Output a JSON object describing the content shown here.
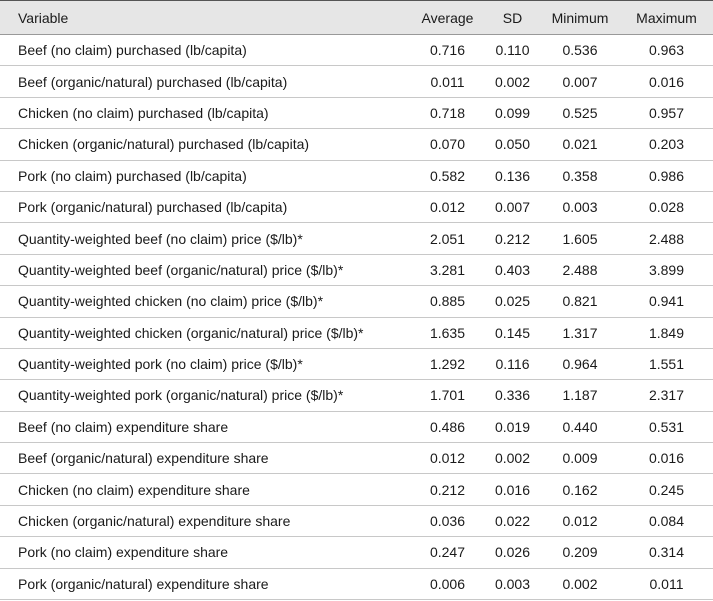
{
  "table": {
    "header": [
      "Variable",
      "Average",
      "SD",
      "Minimum",
      "Maximum"
    ],
    "rows": [
      [
        "Beef (no claim) purchased (lb/capita)",
        "0.716",
        "0.110",
        "0.536",
        "0.963"
      ],
      [
        "Beef (organic/natural) purchased (lb/capita)",
        "0.011",
        "0.002",
        "0.007",
        "0.016"
      ],
      [
        "Chicken (no claim) purchased (lb/capita)",
        "0.718",
        "0.099",
        "0.525",
        "0.957"
      ],
      [
        "Chicken (organic/natural) purchased (lb/capita)",
        "0.070",
        "0.050",
        "0.021",
        "0.203"
      ],
      [
        "Pork (no claim) purchased (lb/capita)",
        "0.582",
        "0.136",
        "0.358",
        "0.986"
      ],
      [
        "Pork (organic/natural) purchased (lb/capita)",
        "0.012",
        "0.007",
        "0.003",
        "0.028"
      ],
      [
        "Quantity-weighted beef (no claim) price ($/lb)*",
        "2.051",
        "0.212",
        "1.605",
        "2.488"
      ],
      [
        "Quantity-weighted beef (organic/natural) price ($/lb)*",
        "3.281",
        "0.403",
        "2.488",
        "3.899"
      ],
      [
        "Quantity-weighted chicken (no claim) price ($/lb)*",
        "0.885",
        "0.025",
        "0.821",
        "0.941"
      ],
      [
        "Quantity-weighted chicken (organic/natural) price ($/lb)*",
        "1.635",
        "0.145",
        "1.317",
        "1.849"
      ],
      [
        "Quantity-weighted pork (no claim) price ($/lb)*",
        "1.292",
        "0.116",
        "0.964",
        "1.551"
      ],
      [
        "Quantity-weighted pork (organic/natural) price ($/lb)*",
        "1.701",
        "0.336",
        "1.187",
        "2.317"
      ],
      [
        "Beef (no claim) expenditure share",
        "0.486",
        "0.019",
        "0.440",
        "0.531"
      ],
      [
        "Beef (organic/natural) expenditure share",
        "0.012",
        "0.002",
        "0.009",
        "0.016"
      ],
      [
        "Chicken (no claim) expenditure share",
        "0.212",
        "0.016",
        "0.162",
        "0.245"
      ],
      [
        "Chicken (organic/natural) expenditure share",
        "0.036",
        "0.022",
        "0.012",
        "0.084"
      ],
      [
        "Pork (no claim) expenditure share",
        "0.247",
        "0.026",
        "0.209",
        "0.314"
      ],
      [
        "Pork (organic/natural) expenditure share",
        "0.006",
        "0.003",
        "0.002",
        "0.011"
      ]
    ]
  }
}
